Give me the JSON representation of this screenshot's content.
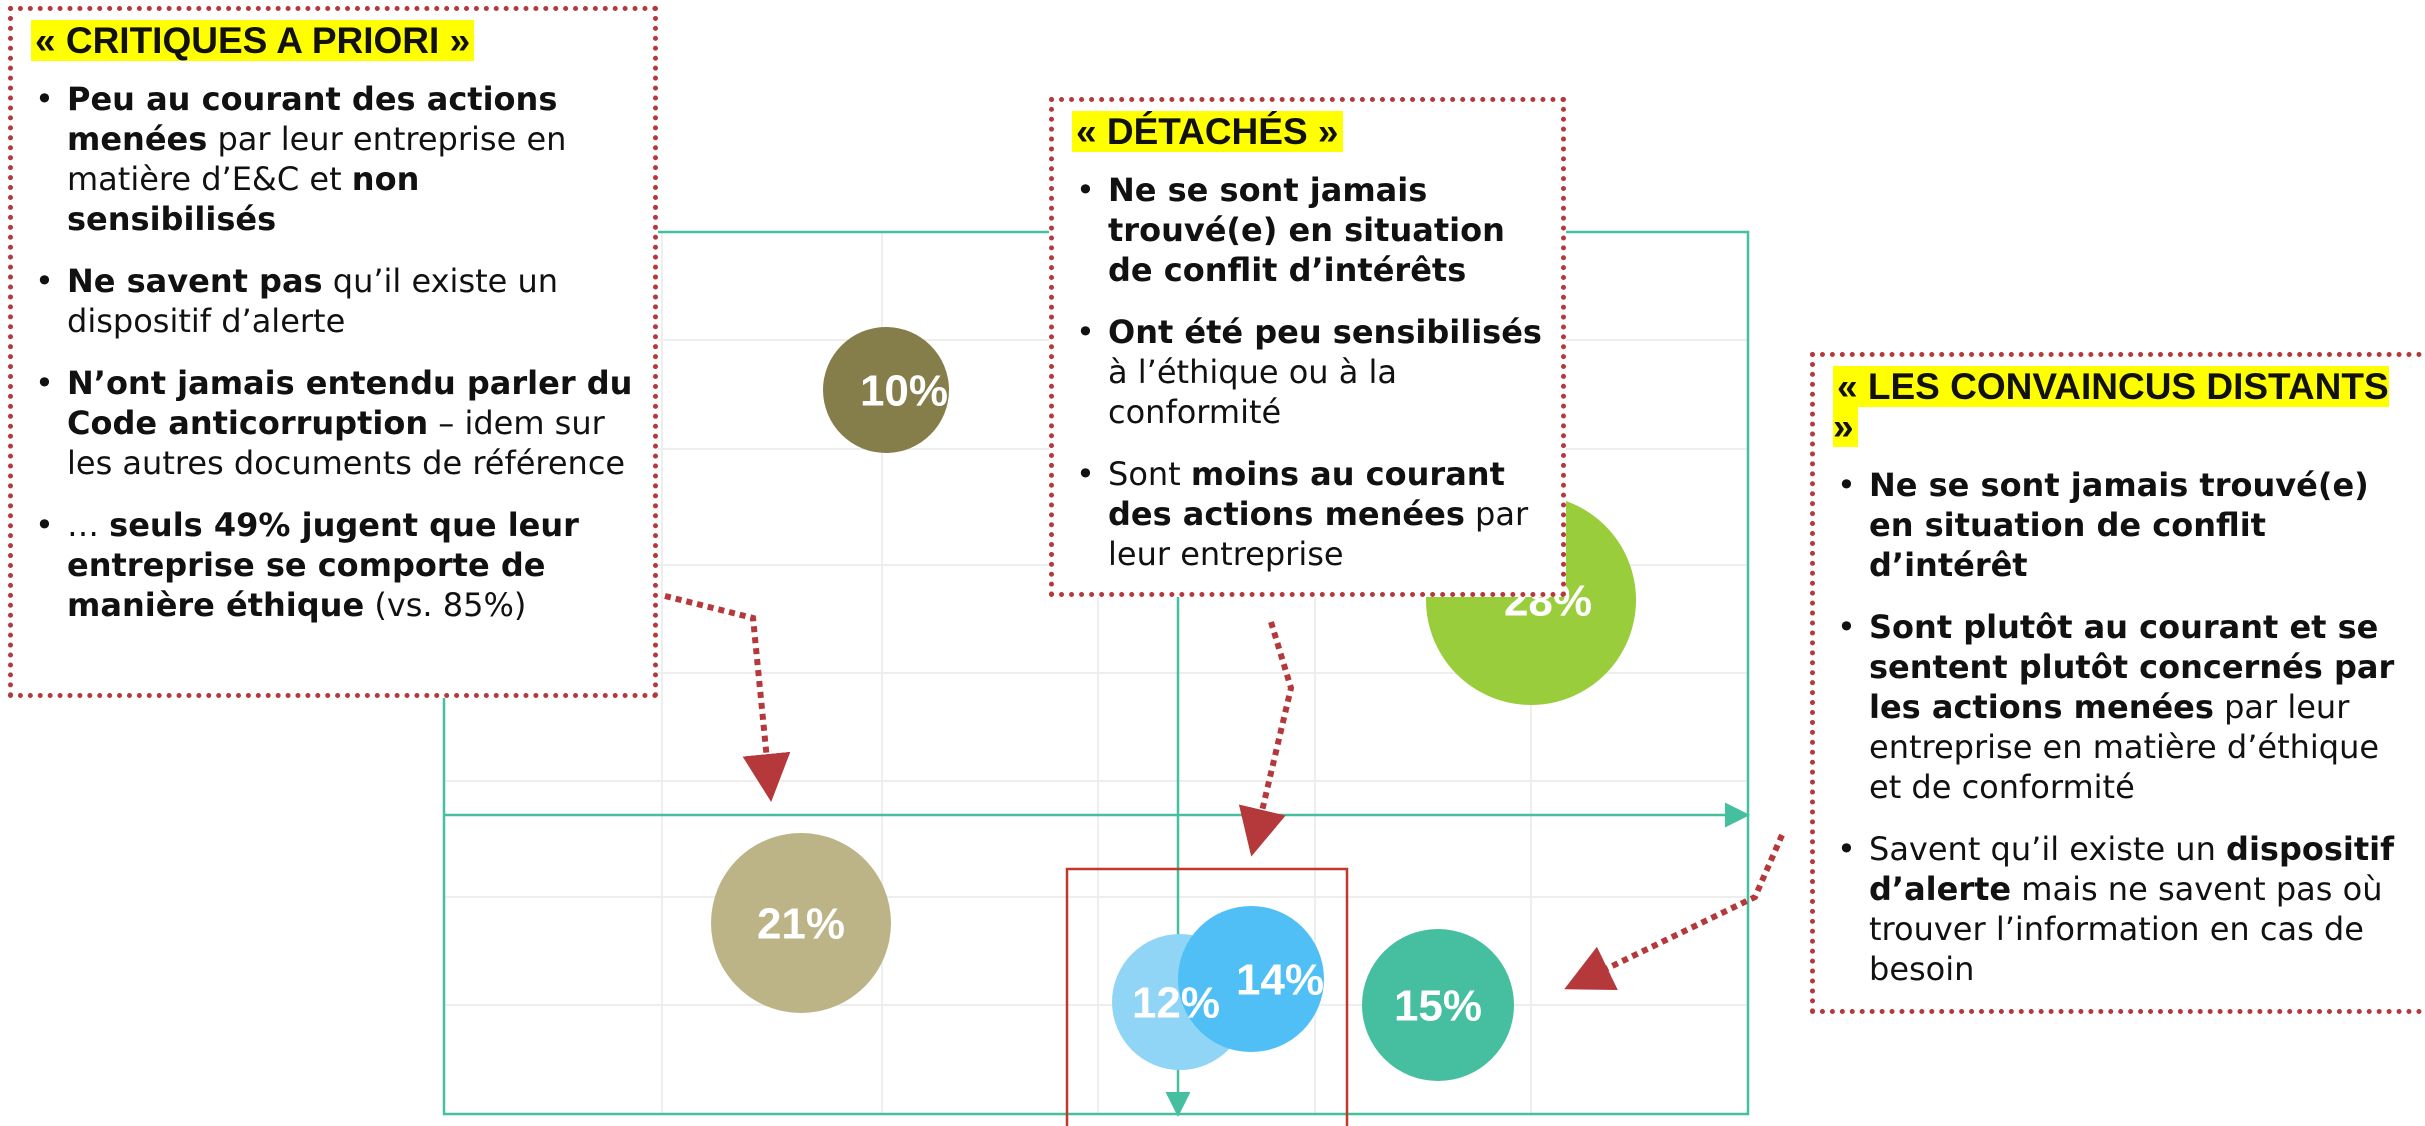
{
  "boxes": [
    {
      "title": "« CRITIQUES A PRIORI »",
      "bullets": [
        [
          {
            "text": "Peu au courant des actions menées",
            "bold": true
          },
          {
            "text": " par leur entreprise en matière d’E&C et ",
            "bold": false
          },
          {
            "text": "non sensibilisés",
            "bold": true
          }
        ],
        [
          {
            "text": "Ne savent pas",
            "bold": true
          },
          {
            "text": " qu’il existe un dispositif d’alerte",
            "bold": false
          }
        ],
        [
          {
            "text": "N’ont jamais entendu parler du Code anticorruption",
            "bold": true
          },
          {
            "text": " – idem sur les autres documents de référence",
            "bold": false
          }
        ],
        [
          {
            "text": "… ",
            "bold": false
          },
          {
            "text": "seuls 49% jugent que leur entreprise se comporte de manière éthique",
            "bold": true
          },
          {
            "text": " (vs. 85%)",
            "bold": false
          }
        ]
      ]
    },
    {
      "title": "« DÉTACHÉS »",
      "bullets": [
        [
          {
            "text": "Ne se sont jamais trouvé(e) en situation de conflit d’intérêts",
            "bold": true
          }
        ],
        [
          {
            "text": "Ont été peu sensibilisés",
            "bold": true
          },
          {
            "text": " à l’éthique ou à la conformité",
            "bold": false
          }
        ],
        [
          {
            "text": "Sont ",
            "bold": false
          },
          {
            "text": "moins au courant des actions menées",
            "bold": true
          },
          {
            "text": " par leur entreprise",
            "bold": false
          }
        ]
      ]
    },
    {
      "title": "« LES CONVAINCUS DISTANTS »",
      "bullets": [
        [
          {
            "text": "Ne se sont jamais trouvé(e) en situation de conflit d’intérêt",
            "bold": true
          }
        ],
        [
          {
            "text": "Sont plutôt au courant et se sentent plutôt concernés par les actions menées",
            "bold": true
          },
          {
            "text": " par leur entreprise en matière d’éthique et de conformité",
            "bold": false
          }
        ],
        [
          {
            "text": "Savent qu’il existe un ",
            "bold": false
          },
          {
            "text": "dispositif d’alerte",
            "bold": true
          },
          {
            "text": " mais ne savent pas où trouver l’information en cas de besoin",
            "bold": false
          }
        ]
      ]
    }
  ],
  "bubbles": [
    {
      "label": "10%",
      "color": "#857d4a"
    },
    {
      "label": "28%",
      "color": "#9acd3c"
    },
    {
      "label": "21%",
      "color": "#bcb486"
    },
    {
      "label": "12%",
      "color": "#90d5f5"
    },
    {
      "label": "14%",
      "color": "#4fbff5"
    },
    {
      "label": "15%",
      "color": "#45bf9f"
    }
  ]
}
